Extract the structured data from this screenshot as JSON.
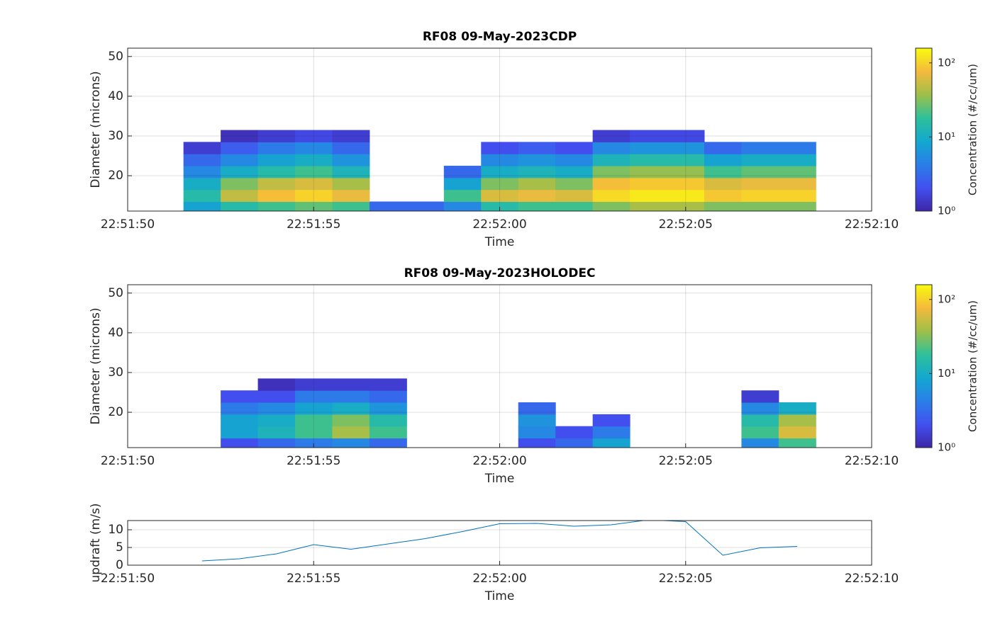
{
  "chart_data": [
    {
      "type": "heatmap",
      "title": "RF08 09-May-2023CDP",
      "xlabel": "Time",
      "ylabel": "Diameter (microns)",
      "x": [
        "22:51:52",
        "22:51:53",
        "22:51:54",
        "22:51:55",
        "22:51:56",
        "22:51:57",
        "22:51:58",
        "22:51:59",
        "22:52:00",
        "22:52:01",
        "22:52:02",
        "22:52:03",
        "22:52:04",
        "22:52:05",
        "22:52:06",
        "22:52:07",
        "22:52:08"
      ],
      "y": [
        12,
        15,
        18,
        21,
        24,
        27,
        30
      ],
      "z": [
        [
          8,
          15,
          20,
          25,
          20,
          3,
          3,
          5,
          15,
          20,
          20,
          30,
          40,
          40,
          30,
          30,
          30
        ],
        [
          15,
          50,
          80,
          100,
          70,
          null,
          null,
          20,
          60,
          70,
          60,
          110,
          130,
          130,
          90,
          100,
          100
        ],
        [
          10,
          30,
          50,
          60,
          40,
          null,
          null,
          8,
          30,
          40,
          30,
          80,
          90,
          90,
          60,
          70,
          70
        ],
        [
          5,
          10,
          15,
          20,
          12,
          null,
          null,
          3,
          10,
          12,
          10,
          30,
          35,
          35,
          20,
          25,
          25
        ],
        [
          3,
          5,
          8,
          10,
          6,
          null,
          null,
          null,
          5,
          6,
          5,
          12,
          15,
          15,
          8,
          10,
          10
        ],
        [
          1.5,
          2.5,
          4,
          5,
          3,
          null,
          null,
          null,
          2,
          2.5,
          2,
          5,
          6,
          6,
          3,
          4,
          4
        ],
        [
          null,
          1.2,
          1.5,
          1.8,
          1.5,
          null,
          null,
          null,
          null,
          null,
          null,
          1.5,
          1.8,
          1.8,
          null,
          null,
          null
        ]
      ],
      "xlim": [
        "22:51:50",
        "22:52:10"
      ],
      "xticks": [
        "22:51:50",
        "22:51:55",
        "22:52:00",
        "22:52:05",
        "22:52:10"
      ],
      "ylim": [
        11.1,
        52.1
      ],
      "yticks": [
        20,
        30,
        40,
        50
      ],
      "grid": true,
      "colorbar": {
        "label": "Concentration (#/cc/um)",
        "lim": [
          1,
          158
        ],
        "log": true,
        "ticks": [
          {
            "value": 1,
            "label": "10⁰"
          },
          {
            "value": 10,
            "label": "10¹"
          },
          {
            "value": 100,
            "label": "10²"
          }
        ],
        "colormap": [
          "#3e26a8",
          "#4250f0",
          "#2a7fe8",
          "#13a8cf",
          "#2ec09a",
          "#9ebf49",
          "#f4ba3c",
          "#f9fb0e"
        ]
      }
    },
    {
      "type": "heatmap",
      "title": "RF08 09-May-2023HOLODEC",
      "xlabel": "Time",
      "ylabel": "Diameter (microns)",
      "x": [
        "22:51:52",
        "22:51:53",
        "22:51:54",
        "22:51:55",
        "22:51:56",
        "22:51:57",
        "22:51:58",
        "22:51:59",
        "22:52:00",
        "22:52:01",
        "22:52:02",
        "22:52:03",
        "22:52:04",
        "22:52:05",
        "22:52:06",
        "22:52:07",
        "22:52:08"
      ],
      "y": [
        12,
        15,
        18,
        21,
        24,
        27,
        30
      ],
      "z": [
        [
          null,
          2,
          3,
          4,
          5,
          3,
          null,
          null,
          null,
          2,
          3,
          8,
          null,
          null,
          null,
          5,
          20
        ],
        [
          null,
          8,
          12,
          20,
          40,
          20,
          null,
          null,
          null,
          5,
          2,
          4,
          null,
          null,
          null,
          20,
          60
        ],
        [
          null,
          8,
          10,
          20,
          30,
          15,
          null,
          null,
          null,
          6,
          null,
          2,
          null,
          null,
          null,
          15,
          40
        ],
        [
          null,
          4,
          5,
          8,
          10,
          6,
          null,
          null,
          null,
          3,
          null,
          null,
          null,
          null,
          null,
          5,
          10
        ],
        [
          null,
          2,
          2,
          4,
          4,
          3,
          null,
          null,
          null,
          null,
          null,
          null,
          null,
          null,
          null,
          1.5,
          null
        ],
        [
          null,
          null,
          1.2,
          1.5,
          1.5,
          1.5,
          null,
          null,
          null,
          null,
          null,
          null,
          null,
          null,
          null,
          null,
          null
        ],
        [
          null,
          null,
          null,
          null,
          null,
          null,
          null,
          null,
          null,
          null,
          null,
          null,
          null,
          null,
          null,
          null,
          null
        ]
      ],
      "xlim": [
        "22:51:50",
        "22:52:10"
      ],
      "xticks": [
        "22:51:50",
        "22:51:55",
        "22:52:00",
        "22:52:05",
        "22:52:10"
      ],
      "ylim": [
        11.1,
        52.1
      ],
      "yticks": [
        20,
        30,
        40,
        50
      ],
      "grid": true,
      "colorbar": {
        "label": "Concentration (#/cc/um)",
        "lim": [
          1,
          158
        ],
        "log": true,
        "ticks": [
          {
            "value": 1,
            "label": "10⁰"
          },
          {
            "value": 10,
            "label": "10¹"
          },
          {
            "value": 100,
            "label": "10²"
          }
        ],
        "colormap": [
          "#3e26a8",
          "#4250f0",
          "#2a7fe8",
          "#13a8cf",
          "#2ec09a",
          "#9ebf49",
          "#f4ba3c",
          "#f9fb0e"
        ]
      }
    },
    {
      "type": "line",
      "xlabel": "Time",
      "ylabel": "updraft (m/s)",
      "x": [
        "22:51:52",
        "22:51:53",
        "22:51:54",
        "22:51:55",
        "22:51:56",
        "22:51:57",
        "22:51:58",
        "22:51:59",
        "22:52:00",
        "22:52:01",
        "22:52:02",
        "22:52:03",
        "22:52:04",
        "22:52:05",
        "22:52:06",
        "22:52:07",
        "22:52:08"
      ],
      "values": [
        1.2,
        1.8,
        3.2,
        5.8,
        4.5,
        6,
        7.5,
        9.5,
        11.7,
        11.8,
        11,
        11.4,
        12.8,
        12.3,
        2.8,
        4.9,
        5.3
      ],
      "color": "#0072bd",
      "xlim": [
        "22:51:50",
        "22:52:10"
      ],
      "xticks": [
        "22:51:50",
        "22:51:55",
        "22:52:00",
        "22:52:05",
        "22:52:10"
      ],
      "ylim": [
        0,
        12.6
      ],
      "yticks": [
        0,
        5,
        10
      ],
      "grid": true
    }
  ]
}
